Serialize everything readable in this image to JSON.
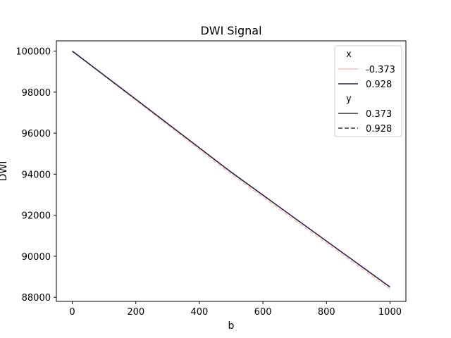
{
  "chart_data": {
    "type": "line",
    "title": "DWI Signal",
    "xlabel": "b",
    "ylabel": "DWI",
    "xlim": [
      -50,
      1050
    ],
    "ylim": [
      87800,
      100500
    ],
    "xticks": [
      0,
      200,
      400,
      600,
      800,
      1000
    ],
    "yticks": [
      88000,
      90000,
      92000,
      94000,
      96000,
      98000,
      100000
    ],
    "xtick_labels": [
      "0",
      "200",
      "400",
      "600",
      "800",
      "1000"
    ],
    "ytick_labels": [
      "88000",
      "90000",
      "92000",
      "94000",
      "96000",
      "98000",
      "100000"
    ],
    "grid": false,
    "legend_position": "top-right",
    "legend": {
      "hue_title": "x",
      "style_title": "y",
      "hue_entries": [
        {
          "label": "-0.373",
          "color": "#f4c4bd",
          "dash": "solid"
        },
        {
          "label": "0.928",
          "color": "#2a1d45",
          "dash": "solid"
        }
      ],
      "style_entries": [
        {
          "label": "0.373",
          "color": "#333333",
          "dash": "solid"
        },
        {
          "label": "0.928",
          "color": "#333333",
          "dash": "dashed"
        }
      ]
    },
    "series": [
      {
        "x_value": "-0.373",
        "y_value": "0.928",
        "color": "#f4c4bd",
        "dash": "dashed",
        "x": [
          0,
          200,
          500,
          1000
        ],
        "y": [
          100000,
          97600,
          94000,
          88400
        ]
      },
      {
        "x_value": "0.928",
        "y_value": "0.373",
        "color": "#2a1d45",
        "dash": "solid",
        "x": [
          0,
          200,
          500,
          1000
        ],
        "y": [
          100000,
          97650,
          94100,
          88500
        ]
      }
    ]
  }
}
